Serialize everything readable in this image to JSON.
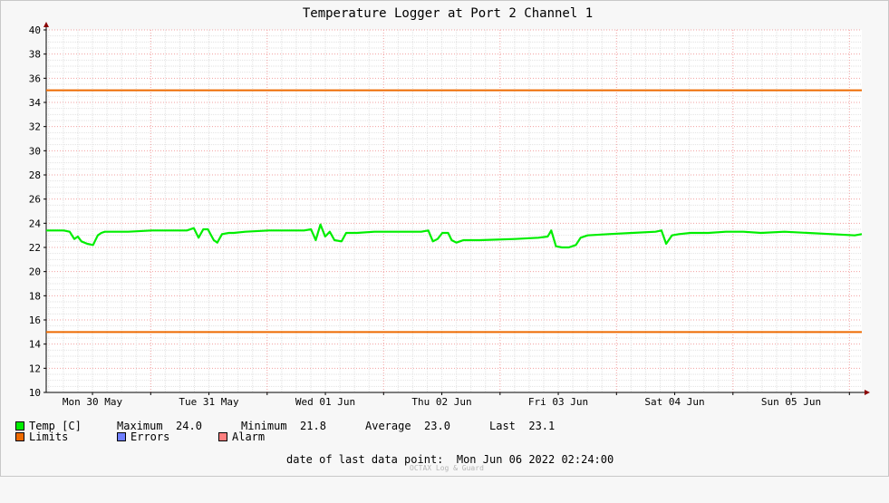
{
  "chart_data": {
    "type": "line",
    "title": "Temperature Logger at Port 2 Channel 1",
    "ylim": [
      10,
      40
    ],
    "y_ticks": [
      "10",
      "12",
      "14",
      "16",
      "18",
      "20",
      "22",
      "24",
      "26",
      "28",
      "30",
      "32",
      "34",
      "36",
      "38",
      "40"
    ],
    "x_labels": [
      "Mon 30 May",
      "Tue 31 May",
      "Wed 01 Jun",
      "Thu 02 Jun",
      "Fri 03 Jun",
      "Sat 04 Jun",
      "Sun 05 Jun"
    ],
    "x_range_days": [
      0,
      6.96
    ],
    "limits": [
      15,
      35
    ],
    "series": [
      {
        "name": "Temp [C]",
        "color": "#00ee00",
        "x_days": [
          0,
          0.06,
          0.15,
          0.2,
          0.24,
          0.27,
          0.3,
          0.35,
          0.4,
          0.44,
          0.47,
          0.5,
          0.55,
          0.7,
          0.9,
          1.1,
          1.2,
          1.26,
          1.3,
          1.34,
          1.38,
          1.43,
          1.46,
          1.5,
          1.56,
          1.6,
          1.7,
          1.9,
          2.1,
          2.2,
          2.26,
          2.3,
          2.34,
          2.38,
          2.42,
          2.46,
          2.52,
          2.56,
          2.65,
          2.8,
          3.0,
          3.2,
          3.26,
          3.3,
          3.34,
          3.38,
          3.43,
          3.46,
          3.5,
          3.56,
          3.7,
          4.0,
          4.2,
          4.28,
          4.31,
          4.35,
          4.4,
          4.46,
          4.52,
          4.56,
          4.62,
          4.8,
          5.0,
          5.2,
          5.25,
          5.29,
          5.34,
          5.4,
          5.5,
          5.65,
          5.8,
          5.95,
          6.1,
          6.3,
          6.5,
          6.7,
          6.9,
          6.96
        ],
        "y_values": [
          23.4,
          23.4,
          23.4,
          23.3,
          22.7,
          22.9,
          22.5,
          22.3,
          22.2,
          23.0,
          23.2,
          23.3,
          23.3,
          23.3,
          23.4,
          23.4,
          23.4,
          23.6,
          22.8,
          23.5,
          23.5,
          22.6,
          22.4,
          23.1,
          23.2,
          23.2,
          23.3,
          23.4,
          23.4,
          23.4,
          23.5,
          22.6,
          23.9,
          22.9,
          23.3,
          22.6,
          22.5,
          23.2,
          23.2,
          23.3,
          23.3,
          23.3,
          23.4,
          22.5,
          22.7,
          23.2,
          23.2,
          22.6,
          22.4,
          22.6,
          22.6,
          22.7,
          22.8,
          22.9,
          23.4,
          22.1,
          22.0,
          22.0,
          22.2,
          22.8,
          23.0,
          23.1,
          23.2,
          23.3,
          23.4,
          22.3,
          23.0,
          23.1,
          23.2,
          23.2,
          23.3,
          23.3,
          23.2,
          23.3,
          23.2,
          23.1,
          23.0,
          23.1
        ]
      }
    ],
    "grid": true
  },
  "legend": {
    "temp_label": "Temp [C]",
    "max_label": "Maximum",
    "max_value": "24.0",
    "min_label": "Minimum",
    "min_value": "21.8",
    "avg_label": "Average",
    "avg_value": "23.0",
    "last_label": "Last",
    "last_value": "23.1",
    "limits_label": "Limits",
    "errors_label": "Errors",
    "alarm_label": "Alarm",
    "colors": {
      "temp": "#00ee00",
      "limits": "#ee6a00",
      "errors": "#6f7fff",
      "alarm": "#ff7f7f"
    }
  },
  "footer": {
    "last_point_label": "date of last data point:",
    "last_point_value": "Mon Jun 06 2022 02:24:00",
    "watermark": "OCTAX Log & Guard"
  }
}
